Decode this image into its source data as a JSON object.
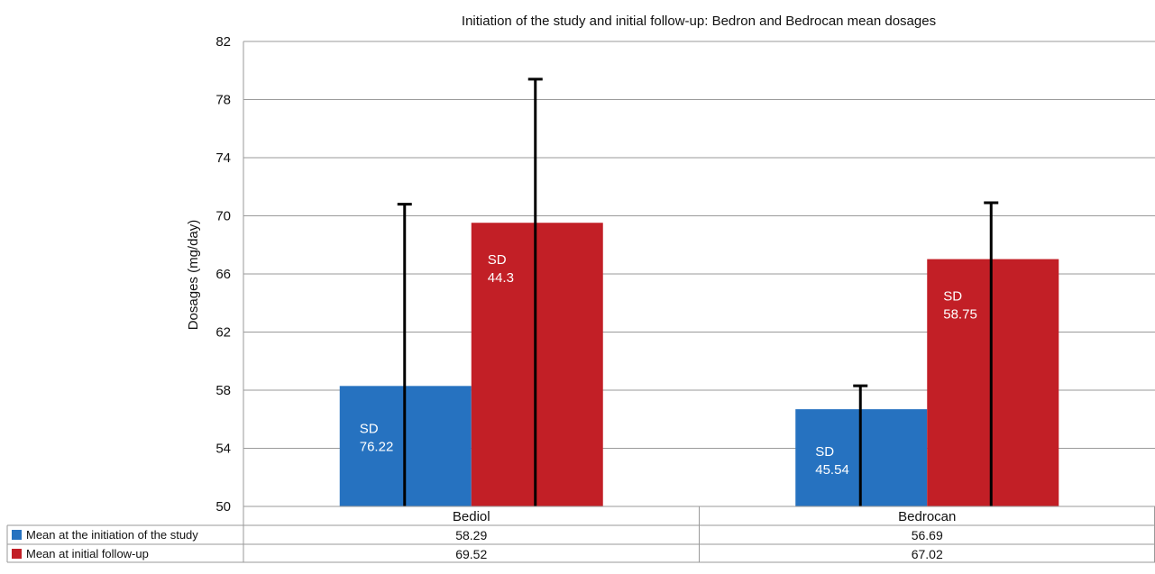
{
  "chart_data": {
    "type": "bar",
    "title": "Initiation of the study and initial follow-up: Bedron and Bedrocan mean dosages",
    "xlabel": "",
    "ylabel": "Dosages (mg/day)",
    "ylim": [
      50,
      82
    ],
    "yticks": [
      50,
      54,
      58,
      62,
      66,
      70,
      74,
      78,
      82
    ],
    "grid": true,
    "legend": "data-table-left",
    "categories": [
      "Bediol",
      "Bedrocan"
    ],
    "series": [
      {
        "name": "Mean at the initiation of the study",
        "color": "#2672c0",
        "values": [
          58.29,
          56.69
        ],
        "value_labels": [
          "58.29",
          "56.69"
        ],
        "error_bar_upper": [
          70.8,
          58.3
        ],
        "error_bar_lower": [
          50,
          50
        ],
        "annotations": [
          [
            "SD",
            "76.22"
          ],
          [
            "SD",
            "45.54"
          ]
        ]
      },
      {
        "name": "Mean at initial follow-up",
        "color": "#c21f26",
        "values": [
          69.52,
          67.02
        ],
        "value_labels": [
          "69.52",
          "67.02"
        ],
        "error_bar_upper": [
          79.4,
          70.9
        ],
        "error_bar_lower": [
          50,
          50
        ],
        "annotations": [
          [
            "SD",
            "44.3"
          ],
          [
            "SD",
            "58.75"
          ]
        ]
      }
    ]
  }
}
